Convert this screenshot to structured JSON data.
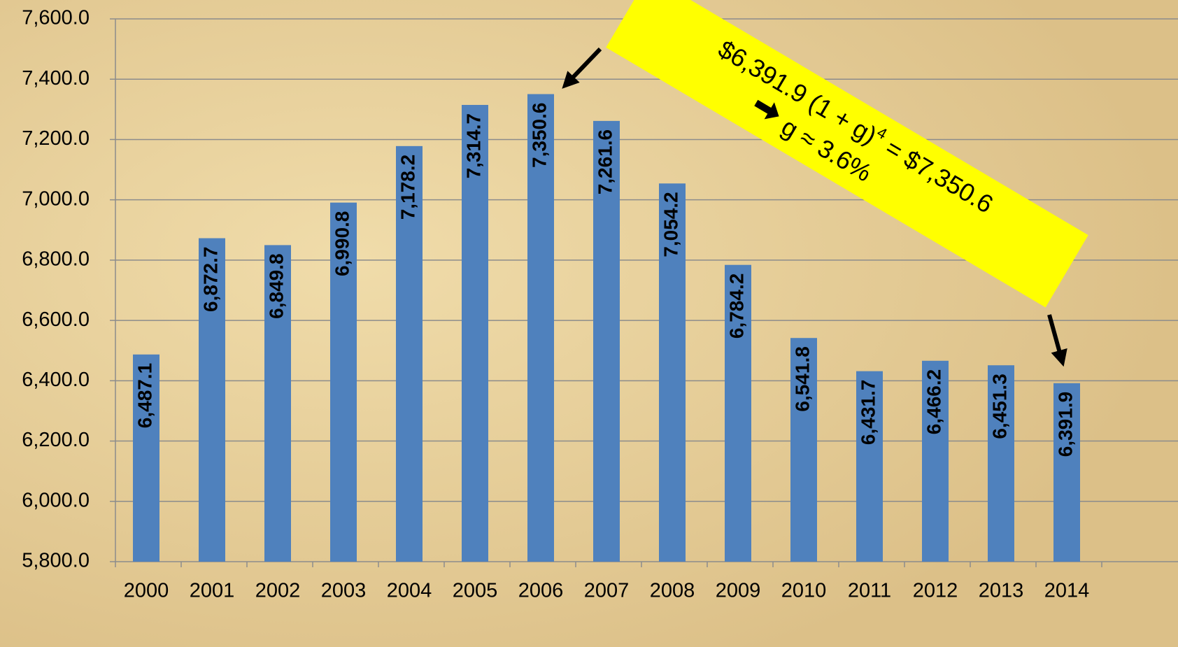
{
  "chart_data": {
    "type": "bar",
    "categories": [
      "2000",
      "2001",
      "2002",
      "2003",
      "2004",
      "2005",
      "2006",
      "2007",
      "2008",
      "2009",
      "2010",
      "2011",
      "2012",
      "2013",
      "2014"
    ],
    "values": [
      6487.1,
      6872.7,
      6849.8,
      6990.8,
      7178.2,
      7314.7,
      7350.6,
      7261.6,
      7054.2,
      6784.2,
      6541.8,
      6431.7,
      6466.2,
      6451.3,
      6391.9
    ],
    "value_labels": [
      "6,487.1",
      "6,872.7",
      "6,849.8",
      "6,990.8",
      "7,178.2",
      "7,314.7",
      "7,350.6",
      "7,261.6",
      "7,054.2",
      "6,784.2",
      "6,541.8",
      "6,431.7",
      "6,466.2",
      "6,451.3",
      "6,391.9"
    ],
    "color": "#4f81bd",
    "ylim": [
      5800,
      7600
    ],
    "yticks": [
      {
        "value": 5800,
        "label": "5,800.0"
      },
      {
        "value": 6000,
        "label": "6,000.0"
      },
      {
        "value": 6200,
        "label": "6,200.0"
      },
      {
        "value": 6400,
        "label": "6,400.0"
      },
      {
        "value": 6600,
        "label": "6,600.0"
      },
      {
        "value": 6800,
        "label": "6,800.0"
      },
      {
        "value": 7000,
        "label": "7,000.0"
      },
      {
        "value": 7200,
        "label": "7,200.0"
      },
      {
        "value": 7400,
        "label": "7,400.0"
      },
      {
        "value": 7600,
        "label": "7,600.0"
      }
    ],
    "grid": true,
    "annotation": {
      "equation_start": "$6,391.9 (1 + g)",
      "exponent": "4",
      "equation_end": " = $7,350.6",
      "result": "g ≈ 3.6%"
    }
  }
}
